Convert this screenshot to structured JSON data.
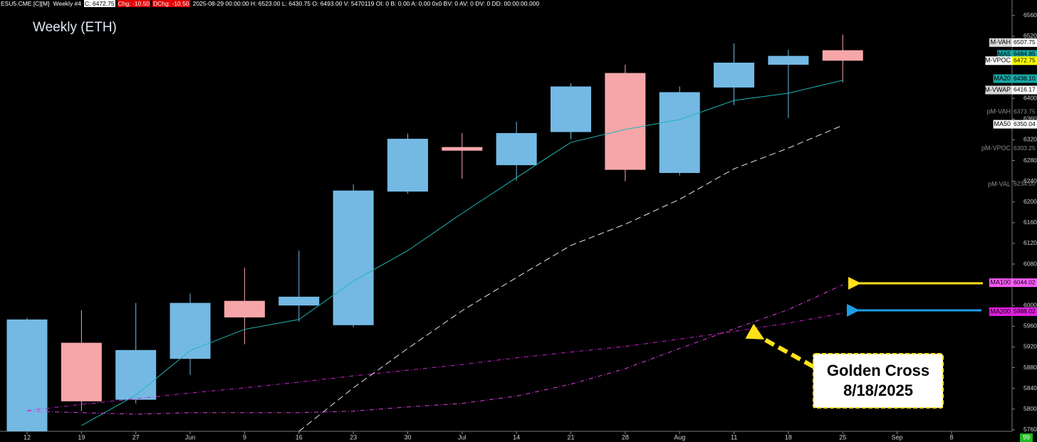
{
  "chart_data": {
    "type": "candlestick",
    "title": "Weekly (ETH)",
    "header": [
      {
        "text": "ESU5.CME [C][M]",
        "bg": null,
        "fg": "#ffffff"
      },
      {
        "text": "Weekly #4",
        "bg": null,
        "fg": "#ffffff"
      },
      {
        "text": "C: 6472.75",
        "bg": "#ffffff",
        "fg": "#000000"
      },
      {
        "text": "Chg: -10.50",
        "bg": "#e00000",
        "fg": "#ffffff"
      },
      {
        "text": "DChg: -10.50",
        "bg": "#e00000",
        "fg": "#ffffff"
      },
      {
        "text": "2025-08-29 00:00:00 H: 6523.00 L: 6430.75 O: 6493.00 V: 5470119 OI: 0 B: 0.00 A: 0.00 0x0 BV: 0 AV: 0 DV: 0 DD: 00:00:00.000",
        "bg": null,
        "fg": "#ffffff"
      }
    ],
    "categories": [
      "12",
      "19",
      "27",
      "Jun",
      "9",
      "16",
      "23",
      "30",
      "Jul",
      "14",
      "21",
      "28",
      "Aug",
      "11",
      "18",
      "25",
      "Sep",
      "8"
    ],
    "open": [
      5745,
      5928,
      5818,
      5897,
      6009,
      6000,
      5962,
      6220,
      6306,
      6271,
      6335,
      6449,
      6256,
      6421,
      6465,
      6493,
      null,
      null
    ],
    "high": [
      5976,
      5991,
      6005,
      6023,
      6073,
      6106,
      6234,
      6332,
      6333,
      6355,
      6429,
      6465,
      6423,
      6506,
      6494,
      6523,
      null,
      null
    ],
    "low": [
      5740,
      5796,
      5811,
      5866,
      5925,
      5969,
      5958,
      6216,
      6245,
      6241,
      6321,
      6240,
      6251,
      6387,
      6362,
      6430.75,
      null,
      null
    ],
    "close": [
      5973,
      5815,
      5914,
      6005,
      5977,
      6017,
      6222,
      6322,
      6299,
      6333,
      6423,
      6262,
      6412,
      6469,
      6482,
      6472.75,
      null,
      null
    ],
    "up_color": "#74b9e4",
    "down_color": "#f6a6a9",
    "lines": [
      {
        "name": "MA20",
        "color": "#1fb5b5",
        "dash": "solid",
        "values": [
          null,
          5768,
          5827,
          5913,
          5954,
          5973,
          6047,
          6106,
          6178,
          6247,
          6315,
          6340,
          6359,
          6396,
          6410,
          6435,
          null,
          null
        ]
      },
      {
        "name": "MA50",
        "color": "#e8e8e8",
        "dash": "dashed",
        "values": [
          null,
          null,
          null,
          null,
          null,
          5757,
          5841,
          5917,
          5990,
          6054,
          6116,
          6157,
          6205,
          6264,
          6304,
          6348,
          null,
          null
        ]
      },
      {
        "name": "MA100",
        "color": "#e040e0",
        "dash": "dashdot",
        "values": [
          5796,
          5793,
          5790,
          5793,
          5793,
          5793,
          5796,
          5804,
          5811,
          5825,
          5848,
          5878,
          5917,
          5955,
          5992,
          6040,
          null,
          null
        ]
      },
      {
        "name": "MA200",
        "color": "#d020d0",
        "dash": "dashdot",
        "values": [
          5797,
          5809,
          5820,
          5831,
          5841,
          5852,
          5864,
          5875,
          5886,
          5899,
          5910,
          5921,
          5935,
          5950,
          5966,
          5985,
          null,
          null
        ]
      }
    ],
    "price_tags": [
      {
        "name": "M-VAH",
        "price": "6507.75",
        "value": 6507.75,
        "name_bg": "#d9d9d9",
        "name_fg": "#000000",
        "bg": "#ffffff",
        "fg": "#000000"
      },
      {
        "name": "MA5",
        "price": "6484.85",
        "value": 6484.85,
        "name_bg": "#19a7a7",
        "name_fg": "#000000",
        "bg": "#19a7a7",
        "fg": "#000000"
      },
      {
        "name": "M-VPOC",
        "price": "6472.75",
        "value": 6472.75,
        "name_bg": "#ffffff",
        "name_fg": "#000000",
        "bg": "#ffff00",
        "fg": "#000000"
      },
      {
        "name": "MA20",
        "price": "6438.10",
        "value": 6438.1,
        "name_bg": "#19a7a7",
        "name_fg": "#000000",
        "bg": "#19a7a7",
        "fg": "#000000"
      },
      {
        "name": "M-VWAP",
        "price": "6416.17",
        "value": 6416.17,
        "name_bg": "#d9d9d9",
        "name_fg": "#000000",
        "bg": "#ffffff",
        "fg": "#000000"
      },
      {
        "name": "pM-VAH",
        "price": "6373.75",
        "value": 6373.75,
        "name_bg": null,
        "name_fg": "#8c8c8c",
        "bg": null,
        "fg": "#8c8c8c"
      },
      {
        "name": "MA50",
        "price": "6350.04",
        "value": 6350.04,
        "name_bg": "#ffffff",
        "name_fg": "#000000",
        "bg": "#ffffff",
        "fg": "#000000"
      },
      {
        "name": "pM-VPOC",
        "price": "6303.25",
        "value": 6303.25,
        "name_bg": null,
        "name_fg": "#8c8c8c",
        "bg": null,
        "fg": "#8c8c8c"
      },
      {
        "name": "pM-VAL",
        "price": "6234.00",
        "value": 6234,
        "name_bg": null,
        "name_fg": "#8c8c8c",
        "bg": null,
        "fg": "#8c8c8c"
      },
      {
        "name": "MA100",
        "price": "6044.02",
        "value": 6044.02,
        "name_bg": "#ff5cff",
        "name_fg": "#000000",
        "bg": "#ff5cff",
        "fg": "#000000"
      },
      {
        "name": "MA200",
        "price": "5988.02",
        "value": 5988.02,
        "name_bg": "#e020e0",
        "name_fg": "#000000",
        "bg": "#e020e0",
        "fg": "#000000"
      }
    ],
    "annotations": [
      "Golden Cross",
      "8/18/2025"
    ],
    "corner_label": "99",
    "ylim": [
      5757,
      6590
    ],
    "yticks": [
      5760,
      5800,
      5840,
      5880,
      5920,
      5960,
      6000,
      6040,
      6080,
      6120,
      6160,
      6200,
      6240,
      6280,
      6320,
      6360,
      6400,
      6440,
      6480,
      6520,
      6560
    ]
  }
}
